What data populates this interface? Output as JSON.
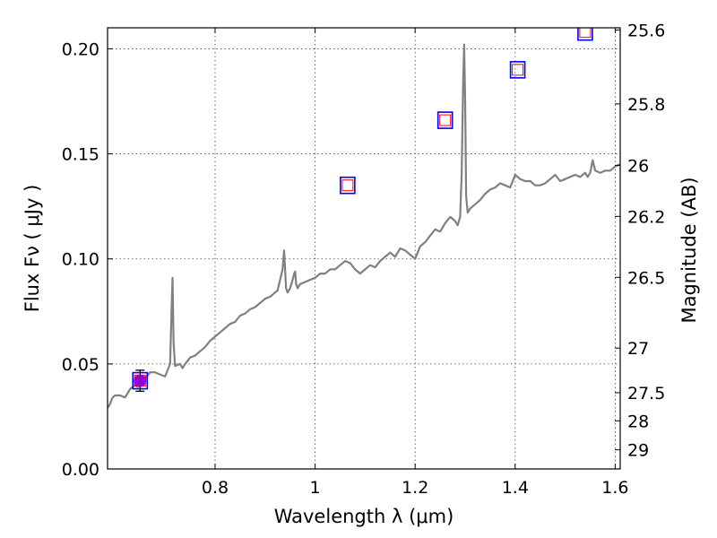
{
  "chart_data": {
    "type": "line",
    "xlabel": "Wavelength  λ (μm)",
    "ylabel": "Flux  Fν  ( μJy )",
    "ylabel_right": "Magnitude (AB)",
    "xlim": [
      0.585,
      1.61
    ],
    "ylim": [
      0.0,
      0.21
    ],
    "grid": true,
    "x_ticks": [
      {
        "value": 0.8,
        "label": "0.8"
      },
      {
        "value": 1.0,
        "label": "1"
      },
      {
        "value": 1.2,
        "label": "1.2"
      },
      {
        "value": 1.4,
        "label": "1.4"
      },
      {
        "value": 1.6,
        "label": "1.6"
      }
    ],
    "y_ticks": [
      {
        "value": 0.0,
        "label": "0.00"
      },
      {
        "value": 0.05,
        "label": "0.05"
      },
      {
        "value": 0.1,
        "label": "0.10"
      },
      {
        "value": 0.15,
        "label": "0.15"
      },
      {
        "value": 0.2,
        "label": "0.20"
      }
    ],
    "mag_ticks": [
      {
        "value": 25.6,
        "label": "25.6"
      },
      {
        "value": 25.8,
        "label": "25.8"
      },
      {
        "value": 26.0,
        "label": "26"
      },
      {
        "value": 26.2,
        "label": "26.2"
      },
      {
        "value": 26.5,
        "label": "26.5"
      },
      {
        "value": 27.0,
        "label": "27"
      },
      {
        "value": 27.5,
        "label": "27.5"
      },
      {
        "value": 28.0,
        "label": "28"
      },
      {
        "value": 29.0,
        "label": "29"
      }
    ],
    "series": [
      {
        "kind": "spectrum",
        "color": "#808080",
        "x": [
          0.585,
          0.59,
          0.595,
          0.6,
          0.61,
          0.62,
          0.625,
          0.63,
          0.64,
          0.645,
          0.65,
          0.66,
          0.67,
          0.68,
          0.69,
          0.7,
          0.705,
          0.71,
          0.713,
          0.715,
          0.717,
          0.72,
          0.73,
          0.735,
          0.74,
          0.75,
          0.76,
          0.77,
          0.78,
          0.79,
          0.8,
          0.81,
          0.82,
          0.83,
          0.84,
          0.85,
          0.86,
          0.87,
          0.88,
          0.89,
          0.9,
          0.91,
          0.92,
          0.925,
          0.93,
          0.935,
          0.938,
          0.94,
          0.942,
          0.945,
          0.95,
          0.955,
          0.958,
          0.96,
          0.962,
          0.965,
          0.97,
          0.98,
          0.99,
          1.0,
          1.01,
          1.02,
          1.03,
          1.04,
          1.05,
          1.06,
          1.07,
          1.08,
          1.09,
          1.1,
          1.11,
          1.12,
          1.13,
          1.14,
          1.15,
          1.16,
          1.17,
          1.18,
          1.19,
          1.2,
          1.21,
          1.22,
          1.23,
          1.24,
          1.25,
          1.26,
          1.27,
          1.28,
          1.285,
          1.29,
          1.293,
          1.296,
          1.298,
          1.3,
          1.302,
          1.305,
          1.31,
          1.32,
          1.33,
          1.34,
          1.35,
          1.36,
          1.37,
          1.38,
          1.39,
          1.4,
          1.41,
          1.42,
          1.43,
          1.44,
          1.45,
          1.46,
          1.47,
          1.48,
          1.49,
          1.5,
          1.51,
          1.52,
          1.53,
          1.54,
          1.545,
          1.55,
          1.555,
          1.56,
          1.57,
          1.58,
          1.59,
          1.6,
          1.61
        ],
        "y": [
          0.029,
          0.031,
          0.034,
          0.035,
          0.035,
          0.034,
          0.036,
          0.038,
          0.04,
          0.039,
          0.042,
          0.043,
          0.046,
          0.046,
          0.045,
          0.044,
          0.047,
          0.05,
          0.075,
          0.091,
          0.06,
          0.049,
          0.05,
          0.048,
          0.05,
          0.053,
          0.054,
          0.056,
          0.058,
          0.061,
          0.063,
          0.065,
          0.067,
          0.069,
          0.07,
          0.073,
          0.074,
          0.076,
          0.077,
          0.079,
          0.081,
          0.082,
          0.084,
          0.085,
          0.09,
          0.095,
          0.104,
          0.095,
          0.086,
          0.084,
          0.086,
          0.09,
          0.093,
          0.094,
          0.088,
          0.086,
          0.088,
          0.089,
          0.09,
          0.091,
          0.093,
          0.093,
          0.095,
          0.095,
          0.097,
          0.099,
          0.098,
          0.095,
          0.093,
          0.095,
          0.097,
          0.096,
          0.099,
          0.101,
          0.103,
          0.101,
          0.105,
          0.104,
          0.102,
          0.1,
          0.106,
          0.108,
          0.111,
          0.114,
          0.113,
          0.117,
          0.12,
          0.118,
          0.116,
          0.12,
          0.14,
          0.185,
          0.202,
          0.175,
          0.13,
          0.122,
          0.124,
          0.126,
          0.128,
          0.131,
          0.133,
          0.134,
          0.136,
          0.135,
          0.134,
          0.14,
          0.138,
          0.137,
          0.137,
          0.135,
          0.135,
          0.136,
          0.138,
          0.14,
          0.137,
          0.138,
          0.139,
          0.14,
          0.139,
          0.141,
          0.139,
          0.141,
          0.147,
          0.142,
          0.141,
          0.142,
          0.142,
          0.144,
          0.145
        ]
      },
      {
        "kind": "photometry-squares",
        "x": [
          0.65,
          1.065,
          1.26,
          1.405,
          1.54
        ],
        "y": [
          0.042,
          0.135,
          0.166,
          0.19,
          0.208
        ],
        "outer_color": "#0000ff",
        "inner_color": "#ff0000"
      },
      {
        "kind": "measured-point",
        "x": [
          0.65
        ],
        "y": [
          0.042
        ],
        "yerr": [
          0.005
        ],
        "color": "#9400d3",
        "errbar_color": "#000000"
      }
    ]
  }
}
